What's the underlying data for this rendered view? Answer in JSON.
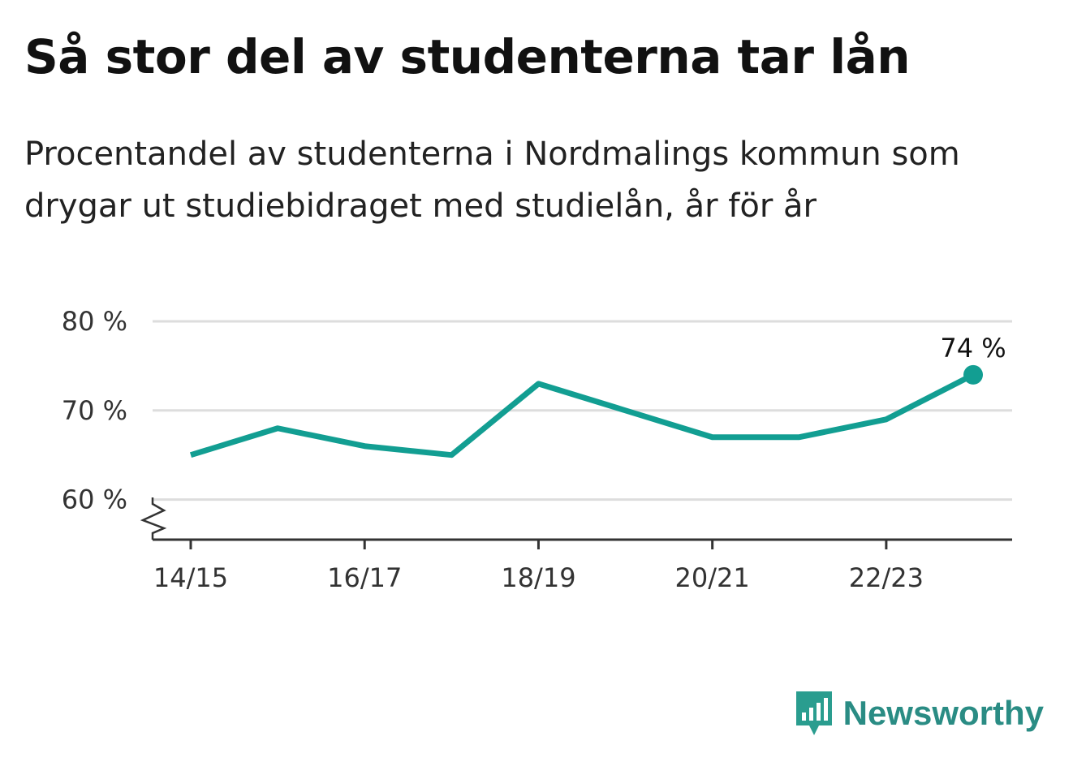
{
  "title": "Så stor del av studenterna tar lån",
  "subtitle": "Procentandel av studenterna i Nordmalings kommun som drygar ut studiebidraget med studielån, år för år",
  "brand": {
    "name": "Newsworthy",
    "color": "#2a9d8f"
  },
  "chart_data": {
    "type": "line",
    "x": [
      "14/15",
      "15/16",
      "16/17",
      "17/18",
      "18/19",
      "19/20",
      "20/21",
      "21/22",
      "22/23",
      "23/24"
    ],
    "x_tick_labels": [
      "14/15",
      "16/17",
      "18/19",
      "20/21",
      "22/23"
    ],
    "series": [
      {
        "values": [
          65,
          68,
          66,
          65,
          73,
          70,
          67,
          67,
          69,
          74
        ],
        "color": "#129e92"
      }
    ],
    "y_ticks": [
      60,
      70,
      80
    ],
    "y_tick_labels": [
      "60 %",
      "70 %",
      "80 %"
    ],
    "ylim": [
      55.5,
      80
    ],
    "y_axis_broken": true,
    "grid": true,
    "annotation": {
      "index": 9,
      "label": "74 %"
    }
  }
}
